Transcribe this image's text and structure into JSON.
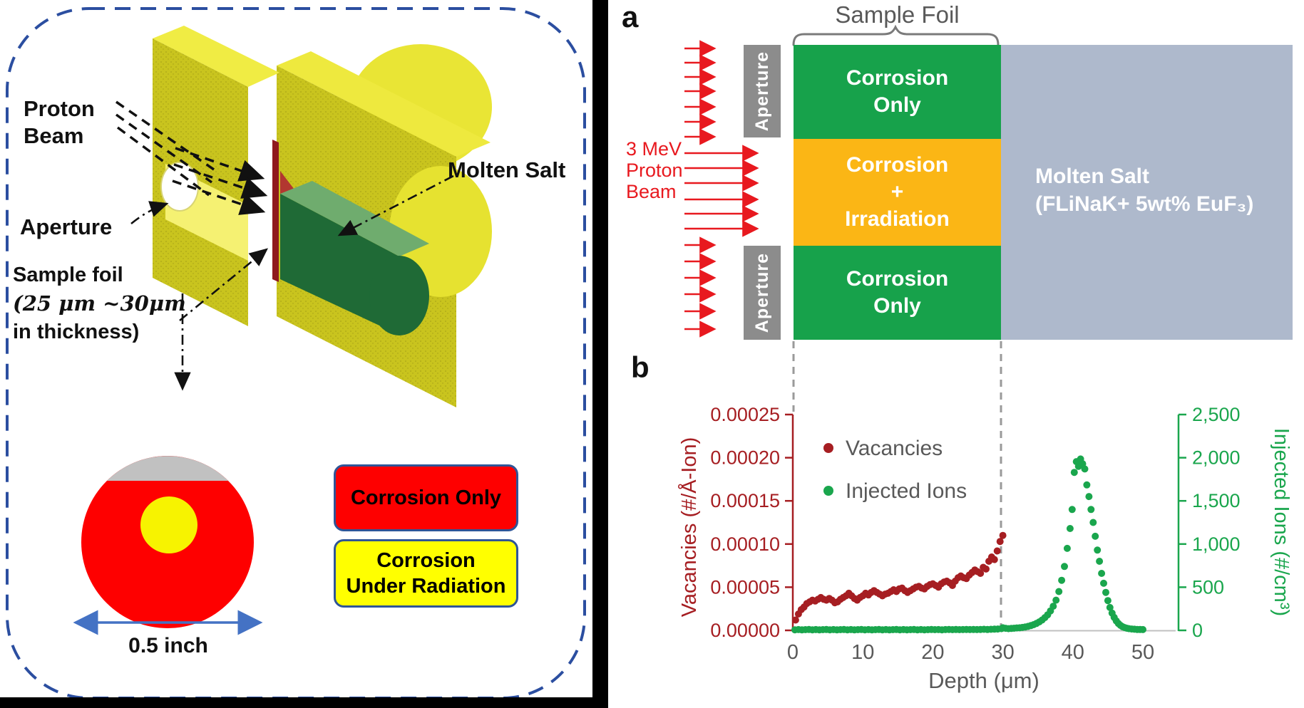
{
  "colors": {
    "bright_red": "#FE0000",
    "bright_yellow": "#FFFF00",
    "sample_yellow": "#F7F300",
    "sample_gray_cap": "#C1C1C1",
    "legend_border_blue": "#2F5597",
    "dashed_border_blue": "#2B4EA0",
    "beam_red": "#E8191F",
    "aperture_gray": "#8C8C8C",
    "foil_green": "#17A24B",
    "foil_orange": "#FBB615",
    "molten_salt_blue": "#AEB9CC",
    "vacancies_dark_red": "#A61E22",
    "injected_green": "#1AA64D",
    "text_gray": "#595959",
    "scale_arrow_blue": "#4472C4"
  },
  "left_figure": {
    "proton_beam_label": "Proton\nBeam",
    "aperture_label": "Aperture",
    "sample_foil_line1": "Sample foil",
    "sample_foil_line2": "(25 μm ~30μm",
    "sample_foil_line3": "in thickness)",
    "molten_salt_label": "Molten Salt",
    "scale_label": "0.5 inch",
    "legend": {
      "corrosion_only": "Corrosion Only",
      "corrosion_under_radiation": "Corrosion\nUnder Radiation"
    }
  },
  "panel_a": {
    "label": "a",
    "caption": "Sample Foil",
    "beam_label": "3 MeV\nProton\nBeam",
    "aperture_top_label": "Aperture",
    "aperture_bottom_label": "Aperture",
    "foil_sections": [
      {
        "label": "Corrosion\nOnly",
        "color": "#17A24B"
      },
      {
        "label": "Corrosion\n+\nIrradiation",
        "color": "#FBB615"
      },
      {
        "label": "Corrosion\nOnly",
        "color": "#17A24B"
      }
    ],
    "molten_salt_label": "Molten Salt\n(FLiNaK+ 5wt% EuF₃)"
  },
  "panel_b": {
    "label": "b"
  },
  "chart_data": {
    "type": "scatter",
    "xlabel": "Depth (μm)",
    "x_ticks": [
      0,
      10,
      20,
      30,
      40,
      50
    ],
    "xlim": [
      0,
      55
    ],
    "grid": false,
    "legend_position": "upper-left-inside",
    "left_axis": {
      "label": "Vacancies (#/Å-Ion)",
      "color": "#A61E22",
      "range": [
        0,
        0.00025
      ],
      "ticks": [
        "0.00000",
        "0.00005",
        "0.00010",
        "0.00015",
        "0.00020",
        "0.00025"
      ]
    },
    "right_axis": {
      "label": "Injected Ions (#/cm³)",
      "color": "#1AA64D",
      "range": [
        0,
        2500
      ],
      "ticks": [
        "0",
        "500",
        "1,000",
        "1,500",
        "2,000",
        "2,500"
      ]
    },
    "annotations": {
      "foil_boundary_depths": [
        0,
        30
      ]
    },
    "series": [
      {
        "name": "Vacancies",
        "axis": "left",
        "color": "#A61E22",
        "points": [
          [
            0.4,
            1.2e-05
          ],
          [
            0.8,
            1.9e-05
          ],
          [
            1.2,
            2.4e-05
          ],
          [
            1.6,
            2.7e-05
          ],
          [
            2.0,
            3.1e-05
          ],
          [
            2.4,
            3.3e-05
          ],
          [
            2.8,
            3.5e-05
          ],
          [
            3.2,
            3.4e-05
          ],
          [
            3.6,
            3.6e-05
          ],
          [
            4.0,
            3.8e-05
          ],
          [
            4.4,
            3.6e-05
          ],
          [
            4.8,
            3.5e-05
          ],
          [
            5.2,
            3.7e-05
          ],
          [
            5.6,
            3.5e-05
          ],
          [
            6.0,
            3.2e-05
          ],
          [
            6.4,
            3.3e-05
          ],
          [
            6.8,
            3.6e-05
          ],
          [
            7.2,
            3.8e-05
          ],
          [
            7.6,
            4e-05
          ],
          [
            8.0,
            4.3e-05
          ],
          [
            8.4,
            4e-05
          ],
          [
            8.8,
            3.7e-05
          ],
          [
            9.2,
            3.5e-05
          ],
          [
            9.6,
            3.8e-05
          ],
          [
            10.0,
            4e-05
          ],
          [
            10.4,
            4.3e-05
          ],
          [
            10.8,
            4.1e-05
          ],
          [
            11.2,
            4.4e-05
          ],
          [
            11.6,
            4.6e-05
          ],
          [
            12.0,
            4.4e-05
          ],
          [
            12.4,
            4.2e-05
          ],
          [
            12.8,
            4e-05
          ],
          [
            13.2,
            4.2e-05
          ],
          [
            13.6,
            4.3e-05
          ],
          [
            14.0,
            4.5e-05
          ],
          [
            14.4,
            4.7e-05
          ],
          [
            14.8,
            4.5e-05
          ],
          [
            15.2,
            4.8e-05
          ],
          [
            15.6,
            4.9e-05
          ],
          [
            16.0,
            4.6e-05
          ],
          [
            16.4,
            4.4e-05
          ],
          [
            16.8,
            4.6e-05
          ],
          [
            17.2,
            4.8e-05
          ],
          [
            17.6,
            5e-05
          ],
          [
            18.0,
            5.1e-05
          ],
          [
            18.4,
            4.9e-05
          ],
          [
            18.8,
            4.8e-05
          ],
          [
            19.2,
            5.1e-05
          ],
          [
            19.6,
            5.3e-05
          ],
          [
            20.0,
            5.4e-05
          ],
          [
            20.4,
            5.2e-05
          ],
          [
            20.8,
            5e-05
          ],
          [
            21.2,
            5.4e-05
          ],
          [
            21.6,
            5.6e-05
          ],
          [
            22.0,
            5.7e-05
          ],
          [
            22.4,
            5.5e-05
          ],
          [
            22.8,
            5.2e-05
          ],
          [
            23.2,
            5.7e-05
          ],
          [
            23.6,
            6.1e-05
          ],
          [
            24.0,
            6.3e-05
          ],
          [
            24.4,
            6.1e-05
          ],
          [
            24.8,
            6e-05
          ],
          [
            25.2,
            6.4e-05
          ],
          [
            25.6,
            6.7e-05
          ],
          [
            26.0,
            7e-05
          ],
          [
            26.4,
            6.8e-05
          ],
          [
            26.8,
            6.6e-05
          ],
          [
            27.2,
            7.3e-05
          ],
          [
            27.6,
            7.1e-05
          ],
          [
            28.0,
            8e-05
          ],
          [
            28.4,
            8.5e-05
          ],
          [
            28.8,
            8.2e-05
          ],
          [
            29.2,
            9.2e-05
          ],
          [
            29.6,
            0.000103
          ],
          [
            30.0,
            0.00011
          ]
        ]
      },
      {
        "name": "Injected Ions",
        "axis": "right",
        "color": "#1AA64D",
        "points": [
          [
            0.3,
            7
          ],
          [
            0.8,
            9
          ],
          [
            1.3,
            6
          ],
          [
            1.8,
            8
          ],
          [
            2.3,
            10
          ],
          [
            2.8,
            7
          ],
          [
            3.3,
            9
          ],
          [
            3.8,
            6
          ],
          [
            4.3,
            8
          ],
          [
            4.8,
            10
          ],
          [
            5.3,
            7
          ],
          [
            5.8,
            9
          ],
          [
            6.3,
            6
          ],
          [
            6.8,
            8
          ],
          [
            7.3,
            10
          ],
          [
            7.8,
            7
          ],
          [
            8.3,
            9
          ],
          [
            8.8,
            6
          ],
          [
            9.3,
            8
          ],
          [
            9.8,
            10
          ],
          [
            10.3,
            7
          ],
          [
            10.8,
            9
          ],
          [
            11.3,
            6
          ],
          [
            11.8,
            8
          ],
          [
            12.3,
            10
          ],
          [
            12.8,
            7
          ],
          [
            13.3,
            9
          ],
          [
            13.8,
            6
          ],
          [
            14.3,
            8
          ],
          [
            14.8,
            10
          ],
          [
            15.3,
            7
          ],
          [
            15.8,
            9
          ],
          [
            16.3,
            7
          ],
          [
            16.8,
            8
          ],
          [
            17.3,
            10
          ],
          [
            17.8,
            7
          ],
          [
            18.3,
            9
          ],
          [
            18.8,
            7
          ],
          [
            19.3,
            8
          ],
          [
            19.8,
            10
          ],
          [
            20.3,
            8
          ],
          [
            20.8,
            9
          ],
          [
            21.3,
            7
          ],
          [
            21.8,
            9
          ],
          [
            22.3,
            11
          ],
          [
            22.8,
            8
          ],
          [
            23.3,
            10
          ],
          [
            23.8,
            8
          ],
          [
            24.3,
            9
          ],
          [
            24.8,
            11
          ],
          [
            25.3,
            9
          ],
          [
            25.8,
            10
          ],
          [
            26.3,
            9
          ],
          [
            26.8,
            11
          ],
          [
            27.3,
            12
          ],
          [
            27.8,
            10
          ],
          [
            28.3,
            12
          ],
          [
            28.8,
            14
          ],
          [
            29.3,
            16
          ],
          [
            29.8,
            20
          ],
          [
            30.0,
            30
          ],
          [
            30.4,
            24
          ],
          [
            30.8,
            20
          ],
          [
            31.2,
            22
          ],
          [
            31.6,
            25
          ],
          [
            32.0,
            28
          ],
          [
            32.4,
            30
          ],
          [
            32.8,
            34
          ],
          [
            33.2,
            40
          ],
          [
            33.6,
            46
          ],
          [
            34.0,
            55
          ],
          [
            34.4,
            66
          ],
          [
            34.8,
            80
          ],
          [
            35.2,
            98
          ],
          [
            35.6,
            120
          ],
          [
            36.0,
            148
          ],
          [
            36.4,
            180
          ],
          [
            36.8,
            225
          ],
          [
            37.2,
            280
          ],
          [
            37.6,
            350
          ],
          [
            38.0,
            450
          ],
          [
            38.4,
            580
          ],
          [
            38.8,
            740
          ],
          [
            39.2,
            950
          ],
          [
            39.6,
            1180
          ],
          [
            39.9,
            1400
          ],
          [
            40.2,
            1830
          ],
          [
            40.5,
            1955
          ],
          [
            40.8,
            1900
          ],
          [
            41.1,
            1985
          ],
          [
            41.4,
            1930
          ],
          [
            41.7,
            1870
          ],
          [
            42.0,
            1685
          ],
          [
            42.3,
            1550
          ],
          [
            42.6,
            1400
          ],
          [
            42.9,
            1250
          ],
          [
            43.2,
            1090
          ],
          [
            43.5,
            930
          ],
          [
            43.8,
            800
          ],
          [
            44.1,
            660
          ],
          [
            44.4,
            545
          ],
          [
            44.7,
            440
          ],
          [
            45.0,
            345
          ],
          [
            45.3,
            265
          ],
          [
            45.6,
            200
          ],
          [
            45.9,
            150
          ],
          [
            46.2,
            110
          ],
          [
            46.5,
            80
          ],
          [
            46.8,
            58
          ],
          [
            47.1,
            42
          ],
          [
            47.4,
            32
          ],
          [
            47.7,
            25
          ],
          [
            48.0,
            20
          ],
          [
            48.4,
            16
          ],
          [
            48.8,
            13
          ],
          [
            49.2,
            11
          ],
          [
            49.6,
            10
          ],
          [
            50.0,
            9
          ]
        ]
      }
    ]
  }
}
